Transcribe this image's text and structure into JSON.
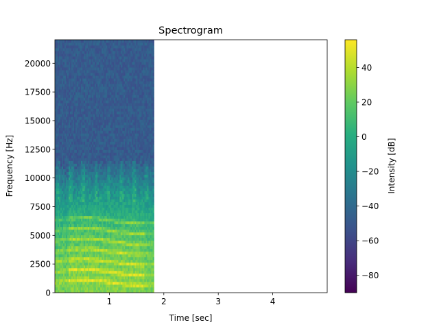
{
  "chart_data": {
    "type": "heatmap",
    "title": "Spectrogram",
    "xlabel": "Time [sec]",
    "ylabel": "Frequency [Hz]",
    "xlim": [
      0,
      5
    ],
    "ylim": [
      0,
      22050
    ],
    "xticks": [
      1,
      2,
      3,
      4
    ],
    "xtick_labels": [
      "1",
      "2",
      "3",
      "4"
    ],
    "yticks": [
      0,
      2500,
      5000,
      7500,
      10000,
      12500,
      15000,
      17500,
      20000
    ],
    "ytick_labels": [
      "0",
      "2500",
      "5000",
      "7500",
      "10000",
      "12500",
      "15000",
      "17500",
      "20000"
    ],
    "data_extent": {
      "time_start": 0.0,
      "time_end": 1.82,
      "freq_start": 0,
      "freq_end": 22050
    },
    "colormap": "viridis",
    "colorbar": {
      "label": "Intensity [dB]",
      "range": [
        -90,
        56
      ],
      "ticks": [
        -80,
        -60,
        -40,
        -20,
        0,
        20,
        40
      ],
      "tick_labels": [
        "−80",
        "−60",
        "−40",
        "−20",
        "0",
        "20",
        "40"
      ]
    },
    "grid": false
  }
}
